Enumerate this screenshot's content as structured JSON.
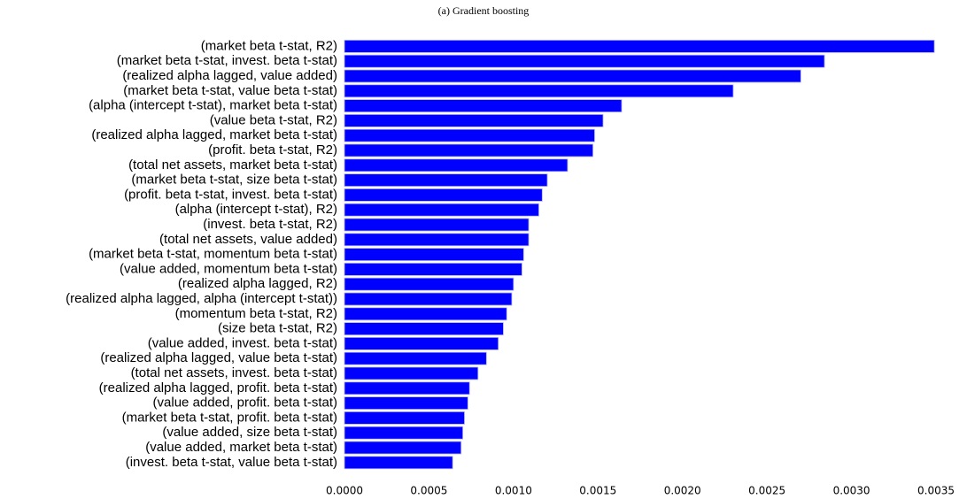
{
  "chart_data": {
    "type": "barh",
    "title": "(a) Gradient boosting",
    "categories": [
      "(market beta t-stat, R2)",
      "(market beta t-stat, invest. beta t-stat)",
      "(realized alpha lagged, value added)",
      "(market beta t-stat, value beta t-stat)",
      "(alpha (intercept t-stat), market beta t-stat)",
      "(value beta t-stat, R2)",
      "(realized alpha lagged, market beta t-stat)",
      "(profit. beta t-stat, R2)",
      "(total net assets, market beta t-stat)",
      "(market beta t-stat, size beta t-stat)",
      "(profit. beta t-stat, invest. beta t-stat)",
      "(alpha (intercept t-stat), R2)",
      "(invest. beta t-stat, R2)",
      "(total net assets, value added)",
      "(market beta t-stat, momentum beta t-stat)",
      "(value added, momentum beta t-stat)",
      "(realized alpha lagged, R2)",
      "(realized alpha lagged, alpha (intercept t-stat))",
      "(momentum beta t-stat, R2)",
      "(size beta t-stat, R2)",
      "(value added, invest. beta t-stat)",
      "(realized alpha lagged, value beta t-stat)",
      "(total net assets, invest. beta t-stat)",
      "(realized alpha lagged, profit. beta t-stat)",
      "(value added, profit. beta t-stat)",
      "(market beta t-stat, profit. beta t-stat)",
      "(value added, size beta t-stat)",
      "(value added, market beta t-stat)",
      "(invest. beta t-stat, value beta t-stat)"
    ],
    "values": [
      0.00349,
      0.00284,
      0.0027,
      0.0023,
      0.00164,
      0.00153,
      0.00148,
      0.00147,
      0.00132,
      0.0012,
      0.00117,
      0.00115,
      0.00109,
      0.00109,
      0.00106,
      0.00105,
      0.001,
      0.00099,
      0.00096,
      0.00094,
      0.00091,
      0.00084,
      0.00079,
      0.00074,
      0.00073,
      0.00071,
      0.0007,
      0.00069,
      0.00064
    ],
    "color": "#0000ff",
    "xlim": [
      0,
      0.0035
    ],
    "xticks": [
      {
        "value": 0,
        "label": "0.0000"
      },
      {
        "value": 0.0005,
        "label": "0.0005"
      },
      {
        "value": 0.001,
        "label": "0.0010"
      },
      {
        "value": 0.0015,
        "label": "0.0015"
      },
      {
        "value": 0.002,
        "label": "0.0020"
      },
      {
        "value": 0.0025,
        "label": "0.0025"
      },
      {
        "value": 0.003,
        "label": "0.0030"
      },
      {
        "value": 0.0035,
        "label": "0.0035"
      }
    ]
  }
}
